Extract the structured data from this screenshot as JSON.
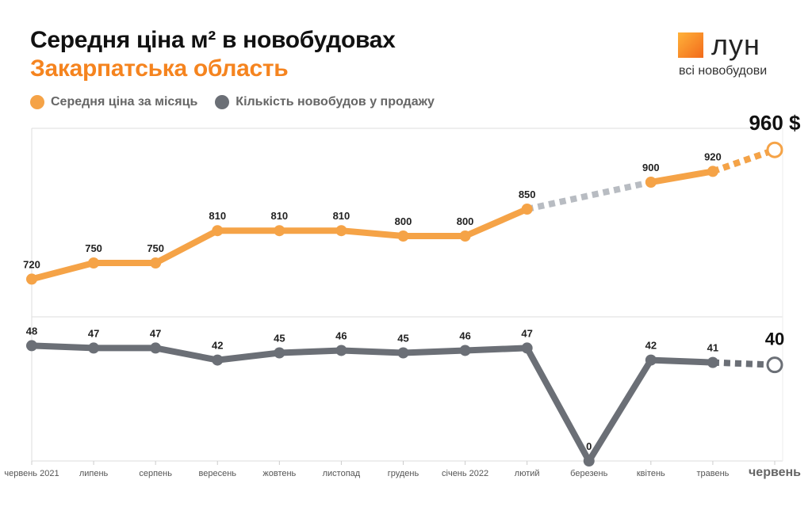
{
  "header": {
    "title": "Середня ціна м² в новобудовах",
    "subtitle": "Закарпатська область"
  },
  "logo": {
    "wordmark": "лун",
    "tagline": "всі новобудови"
  },
  "colors": {
    "price": "#f5a347",
    "price_dark": "#f5841f",
    "count": "#6b6f76",
    "dashed": "#b8bcc2"
  },
  "chart_data": {
    "type": "line",
    "x": [
      "червень 2021",
      "липень",
      "серпень",
      "вересень",
      "жовтень",
      "листопад",
      "грудень",
      "січень 2022",
      "лютий",
      "березень",
      "квітень",
      "травень",
      "червень"
    ],
    "series": [
      {
        "name": "Середня ціна за місяць",
        "values": [
          720,
          750,
          750,
          810,
          810,
          810,
          800,
          800,
          850,
          null,
          900,
          920,
          960
        ],
        "labels": [
          "720",
          "750",
          "750",
          "810",
          "810",
          "810",
          "800",
          "800",
          "850",
          "",
          "900",
          "920",
          "960 $"
        ]
      },
      {
        "name": "Кількість новобудов у продажу",
        "values": [
          48,
          47,
          47,
          42,
          45,
          46,
          45,
          46,
          47,
          0,
          42,
          41,
          40
        ],
        "labels": [
          "48",
          "47",
          "47",
          "42",
          "45",
          "46",
          "45",
          "46",
          "47",
          "0",
          "42",
          "41",
          "40"
        ]
      }
    ],
    "dashed_segments": "gaps and last month",
    "grid": false,
    "legend_placement": "top-left"
  }
}
